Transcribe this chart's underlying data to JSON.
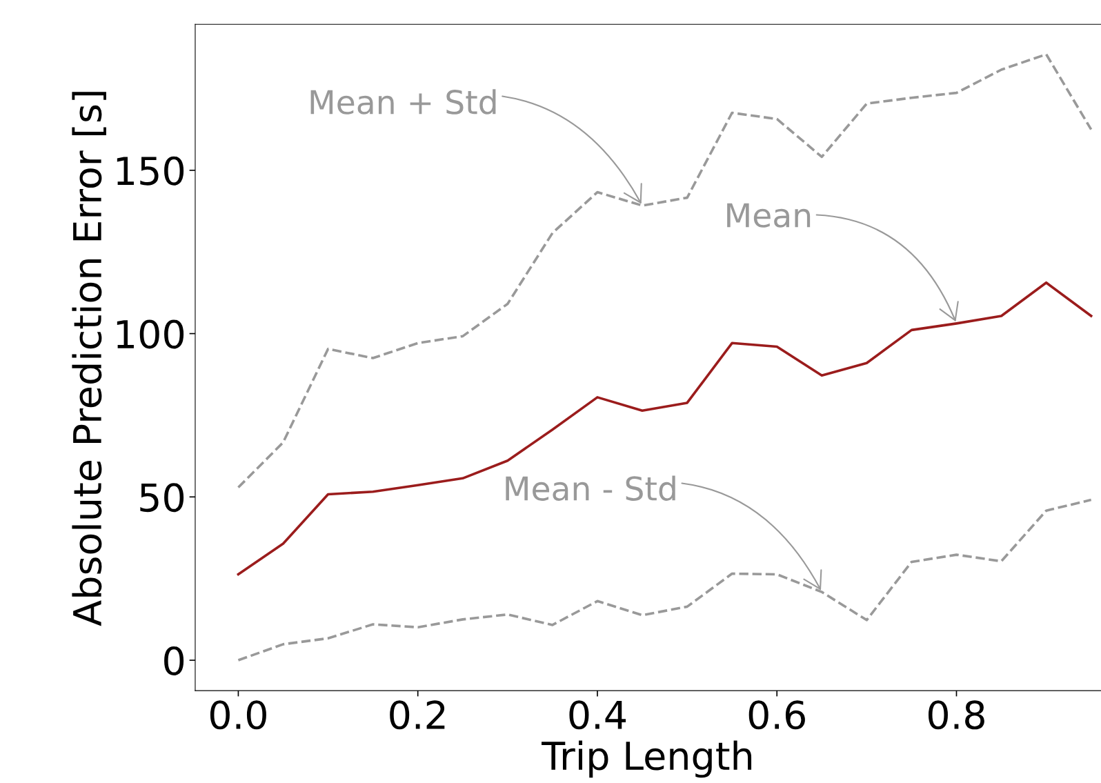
{
  "chart_data": {
    "type": "line",
    "xlabel": "Trip Length",
    "ylabel": "Absolute Prediction Error [s]",
    "x": [
      0.0,
      0.05,
      0.1,
      0.15,
      0.2,
      0.25,
      0.3,
      0.35,
      0.4,
      0.45,
      0.5,
      0.55,
      0.6,
      0.65,
      0.7,
      0.75,
      0.8,
      0.85,
      0.9,
      0.95
    ],
    "series": [
      {
        "color": "#9b1c1c",
        "line_style": "solid",
        "values": [
          26.3,
          35.7,
          50.8,
          51.6,
          53.6,
          55.7,
          61.1,
          70.6,
          80.5,
          76.4,
          78.8,
          97.1,
          96.0,
          87.2,
          91.0,
          101.1,
          103.1,
          105.4,
          115.6,
          105.4
        ]
      },
      {
        "color": "#999999",
        "line_style": "dashed",
        "values": [
          52.9,
          66.7,
          95.3,
          92.5,
          97.1,
          99.2,
          109.1,
          130.8,
          143.3,
          139.2,
          141.6,
          167.6,
          165.7,
          154.1,
          170.4,
          172.2,
          173.7,
          180.8,
          185.5,
          162.5
        ]
      },
      {
        "color": "#999999",
        "line_style": "dashed",
        "values": [
          0.0,
          4.9,
          6.7,
          11.0,
          10.1,
          12.5,
          14.0,
          10.8,
          18.1,
          13.8,
          16.4,
          26.5,
          26.3,
          20.9,
          12.3,
          30.1,
          32.3,
          30.3,
          45.8,
          49.1
        ]
      }
    ],
    "annotations": [
      {
        "text": "Mean + Std",
        "x": 0.45,
        "y": 139.2
      },
      {
        "text": "Mean",
        "x": 0.8,
        "y": 103.1
      },
      {
        "text": "Mean - Std",
        "x": 0.65,
        "y": 20.9
      }
    ],
    "xlim": [
      -0.048,
      0.961
    ],
    "ylim": [
      -9.3,
      194.7
    ],
    "xticks": [
      {
        "value": 0,
        "label": "0.0"
      },
      0.2,
      0.4,
      0.6,
      0.8
    ],
    "yticks": [
      0,
      50,
      100,
      150
    ],
    "grid": false,
    "legend": false
  }
}
